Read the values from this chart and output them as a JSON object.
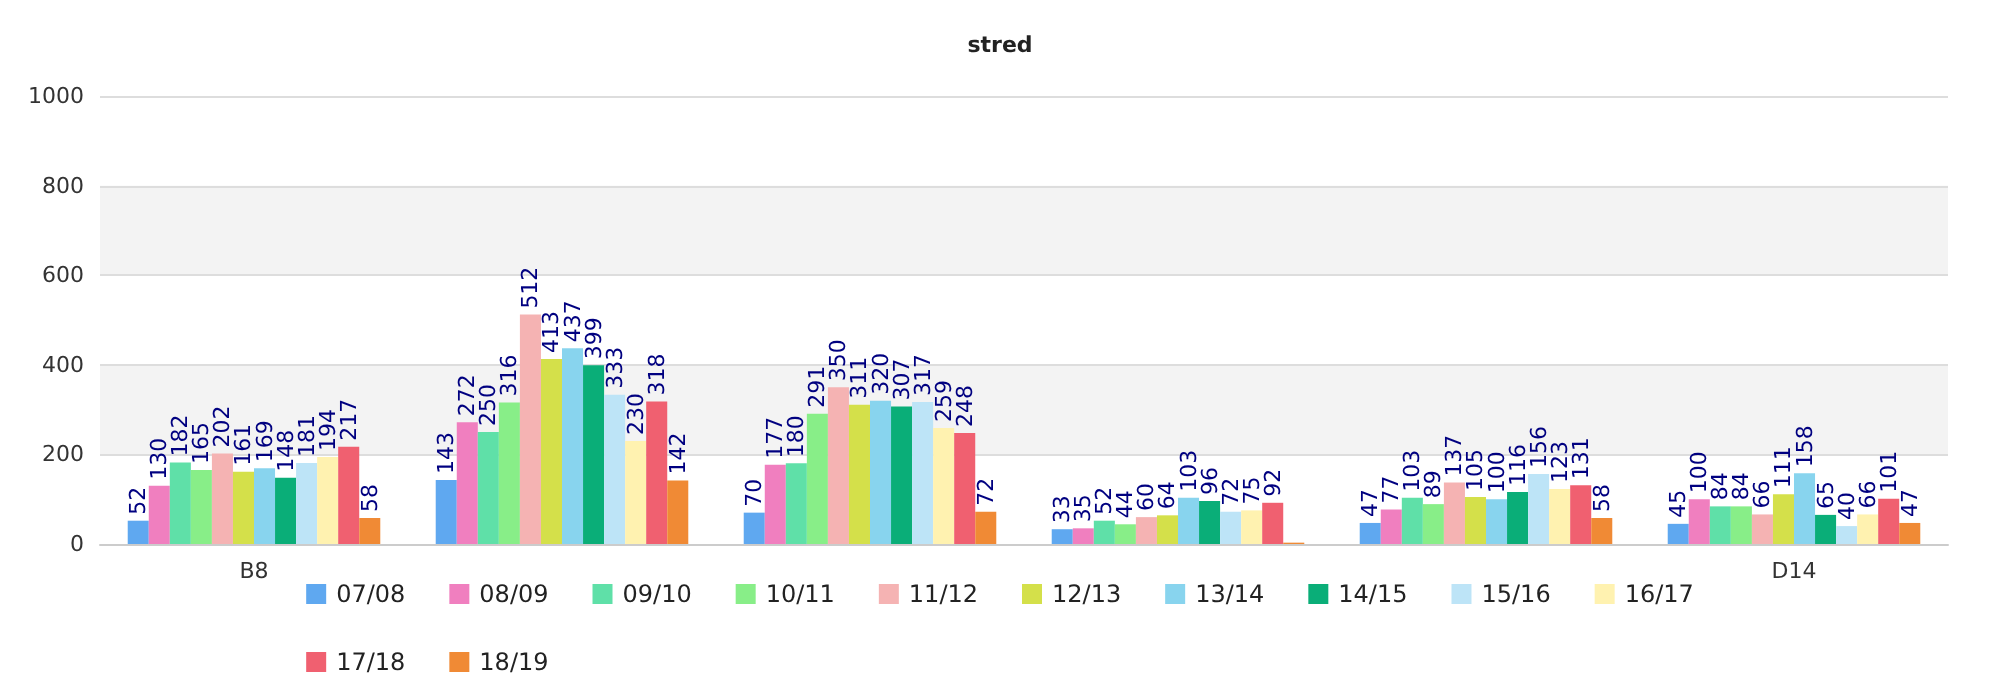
{
  "chart_data": {
    "type": "bar",
    "title": "stred",
    "categories": [
      "B8",
      null,
      null,
      null,
      null,
      "D14"
    ],
    "series": [
      {
        "name": "07/08",
        "color": "#5fa8f0",
        "values": [
          52,
          143,
          70,
          33,
          47,
          45
        ]
      },
      {
        "name": "08/09",
        "color": "#f07fbf",
        "values": [
          130,
          272,
          177,
          35,
          77,
          100
        ]
      },
      {
        "name": "09/10",
        "color": "#5fe0a8",
        "values": [
          182,
          250,
          180,
          52,
          103,
          84
        ]
      },
      {
        "name": "10/11",
        "color": "#88ee88",
        "values": [
          165,
          316,
          291,
          44,
          89,
          84
        ]
      },
      {
        "name": "11/12",
        "color": "#f5b3b3",
        "values": [
          202,
          512,
          350,
          60,
          137,
          66
        ]
      },
      {
        "name": "12/13",
        "color": "#d4e04a",
        "values": [
          161,
          413,
          311,
          64,
          105,
          111
        ]
      },
      {
        "name": "13/14",
        "color": "#88d4ee",
        "values": [
          169,
          437,
          320,
          103,
          100,
          158
        ]
      },
      {
        "name": "14/15",
        "color": "#0aae78",
        "values": [
          148,
          399,
          307,
          96,
          116,
          65
        ]
      },
      {
        "name": "15/16",
        "color": "#bde4f7",
        "values": [
          181,
          333,
          317,
          72,
          156,
          40
        ]
      },
      {
        "name": "16/17",
        "color": "#fff2b0",
        "values": [
          194,
          230,
          259,
          75,
          123,
          66
        ]
      },
      {
        "name": "17/18",
        "color": "#f06070",
        "values": [
          217,
          318,
          248,
          92,
          131,
          101
        ]
      },
      {
        "name": "18/19",
        "color": "#f08a35",
        "values": [
          58,
          142,
          72,
          3,
          58,
          47
        ],
        "value_labels": [
          "58",
          "142",
          "72",
          null,
          "58",
          "47"
        ]
      }
    ],
    "ylim": [
      0,
      1000
    ],
    "yticks": [
      0,
      200,
      400,
      600,
      800,
      1000
    ],
    "grid": "y",
    "legend": "bottom",
    "data_labels": true
  }
}
